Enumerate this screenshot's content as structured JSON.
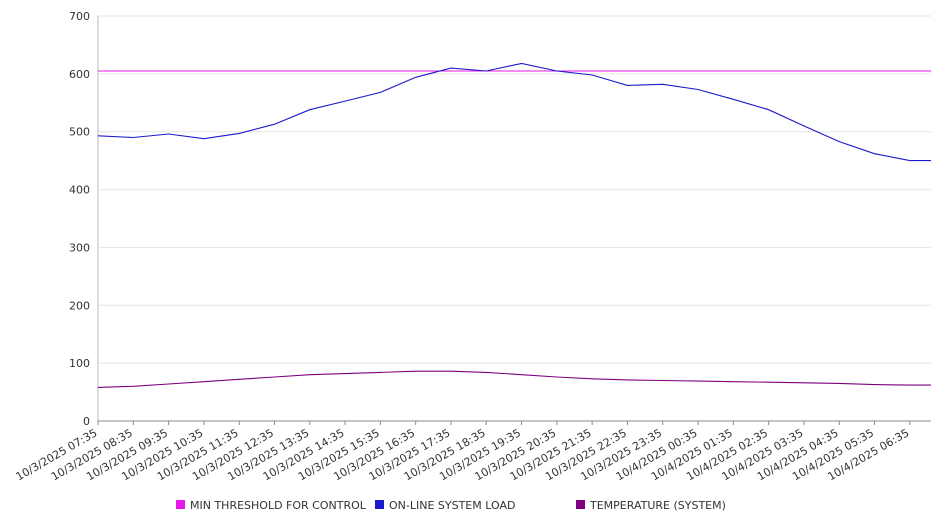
{
  "chart_data": {
    "type": "line",
    "title": "",
    "xlabel": "",
    "ylabel": "",
    "ylim": [
      0,
      700
    ],
    "yticks": [
      0,
      100,
      200,
      300,
      400,
      500,
      600,
      700
    ],
    "grid": true,
    "legend_position": "bottom",
    "x": [
      "10/3/2025 07:35",
      "10/3/2025 08:35",
      "10/3/2025 09:35",
      "10/3/2025 10:35",
      "10/3/2025 11:35",
      "10/3/2025 12:35",
      "10/3/2025 13:35",
      "10/3/2025 14:35",
      "10/3/2025 15:35",
      "10/3/2025 16:35",
      "10/3/2025 17:35",
      "10/3/2025 18:35",
      "10/3/2025 19:35",
      "10/3/2025 20:35",
      "10/3/2025 21:35",
      "10/3/2025 22:35",
      "10/3/2025 23:35",
      "10/4/2025 00:35",
      "10/4/2025 01:35",
      "10/4/2025 02:35",
      "10/4/2025 03:35",
      "10/4/2025 04:35",
      "10/4/2025 05:35",
      "10/4/2025 06:35"
    ],
    "series": [
      {
        "name": "MIN THRESHOLD FOR CONTROL",
        "color": "#e619e6",
        "values": [
          605,
          605,
          605,
          605,
          605,
          605,
          605,
          605,
          605,
          605,
          605,
          605,
          605,
          605,
          605,
          605,
          605,
          605,
          605,
          605,
          605,
          605,
          605,
          605
        ]
      },
      {
        "name": "ON-LINE SYSTEM LOAD",
        "color": "#1a1acc",
        "values": [
          493,
          490,
          496,
          488,
          497,
          513,
          538,
          553,
          568,
          594,
          610,
          605,
          618,
          605,
          598,
          580,
          582,
          573,
          556,
          538,
          510,
          483,
          462,
          450
        ]
      },
      {
        "name": "TEMPERATURE (SYSTEM)",
        "color": "#800080",
        "values": [
          58,
          60,
          64,
          68,
          72,
          76,
          80,
          82,
          84,
          86,
          86,
          84,
          80,
          76,
          73,
          71,
          70,
          69,
          68,
          67,
          66,
          65,
          63,
          62
        ]
      }
    ]
  }
}
